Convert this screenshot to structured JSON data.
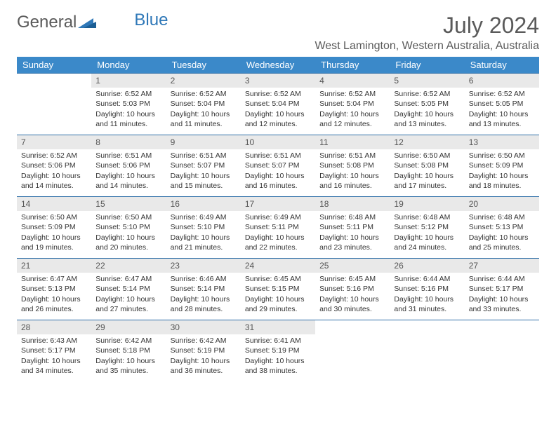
{
  "logo": {
    "text1": "General",
    "text2": "Blue"
  },
  "title": "July 2024",
  "location": "West Lamington, Western Australia, Australia",
  "colors": {
    "header_bg": "#3b89c9",
    "header_text": "#ffffff",
    "daynum_bg": "#e9e9e9",
    "row_border": "#2f6fa8",
    "title_color": "#5a5a5a"
  },
  "typography": {
    "title_fontsize": 32,
    "location_fontsize": 16,
    "dayheader_fontsize": 13,
    "cell_fontsize": 10.5
  },
  "day_headers": [
    "Sunday",
    "Monday",
    "Tuesday",
    "Wednesday",
    "Thursday",
    "Friday",
    "Saturday"
  ],
  "weeks": [
    [
      {
        "num": "",
        "sunrise": "",
        "sunset": "",
        "daylight": ""
      },
      {
        "num": "1",
        "sunrise": "Sunrise: 6:52 AM",
        "sunset": "Sunset: 5:03 PM",
        "daylight": "Daylight: 10 hours and 11 minutes."
      },
      {
        "num": "2",
        "sunrise": "Sunrise: 6:52 AM",
        "sunset": "Sunset: 5:04 PM",
        "daylight": "Daylight: 10 hours and 11 minutes."
      },
      {
        "num": "3",
        "sunrise": "Sunrise: 6:52 AM",
        "sunset": "Sunset: 5:04 PM",
        "daylight": "Daylight: 10 hours and 12 minutes."
      },
      {
        "num": "4",
        "sunrise": "Sunrise: 6:52 AM",
        "sunset": "Sunset: 5:04 PM",
        "daylight": "Daylight: 10 hours and 12 minutes."
      },
      {
        "num": "5",
        "sunrise": "Sunrise: 6:52 AM",
        "sunset": "Sunset: 5:05 PM",
        "daylight": "Daylight: 10 hours and 13 minutes."
      },
      {
        "num": "6",
        "sunrise": "Sunrise: 6:52 AM",
        "sunset": "Sunset: 5:05 PM",
        "daylight": "Daylight: 10 hours and 13 minutes."
      }
    ],
    [
      {
        "num": "7",
        "sunrise": "Sunrise: 6:52 AM",
        "sunset": "Sunset: 5:06 PM",
        "daylight": "Daylight: 10 hours and 14 minutes."
      },
      {
        "num": "8",
        "sunrise": "Sunrise: 6:51 AM",
        "sunset": "Sunset: 5:06 PM",
        "daylight": "Daylight: 10 hours and 14 minutes."
      },
      {
        "num": "9",
        "sunrise": "Sunrise: 6:51 AM",
        "sunset": "Sunset: 5:07 PM",
        "daylight": "Daylight: 10 hours and 15 minutes."
      },
      {
        "num": "10",
        "sunrise": "Sunrise: 6:51 AM",
        "sunset": "Sunset: 5:07 PM",
        "daylight": "Daylight: 10 hours and 16 minutes."
      },
      {
        "num": "11",
        "sunrise": "Sunrise: 6:51 AM",
        "sunset": "Sunset: 5:08 PM",
        "daylight": "Daylight: 10 hours and 16 minutes."
      },
      {
        "num": "12",
        "sunrise": "Sunrise: 6:50 AM",
        "sunset": "Sunset: 5:08 PM",
        "daylight": "Daylight: 10 hours and 17 minutes."
      },
      {
        "num": "13",
        "sunrise": "Sunrise: 6:50 AM",
        "sunset": "Sunset: 5:09 PM",
        "daylight": "Daylight: 10 hours and 18 minutes."
      }
    ],
    [
      {
        "num": "14",
        "sunrise": "Sunrise: 6:50 AM",
        "sunset": "Sunset: 5:09 PM",
        "daylight": "Daylight: 10 hours and 19 minutes."
      },
      {
        "num": "15",
        "sunrise": "Sunrise: 6:50 AM",
        "sunset": "Sunset: 5:10 PM",
        "daylight": "Daylight: 10 hours and 20 minutes."
      },
      {
        "num": "16",
        "sunrise": "Sunrise: 6:49 AM",
        "sunset": "Sunset: 5:10 PM",
        "daylight": "Daylight: 10 hours and 21 minutes."
      },
      {
        "num": "17",
        "sunrise": "Sunrise: 6:49 AM",
        "sunset": "Sunset: 5:11 PM",
        "daylight": "Daylight: 10 hours and 22 minutes."
      },
      {
        "num": "18",
        "sunrise": "Sunrise: 6:48 AM",
        "sunset": "Sunset: 5:11 PM",
        "daylight": "Daylight: 10 hours and 23 minutes."
      },
      {
        "num": "19",
        "sunrise": "Sunrise: 6:48 AM",
        "sunset": "Sunset: 5:12 PM",
        "daylight": "Daylight: 10 hours and 24 minutes."
      },
      {
        "num": "20",
        "sunrise": "Sunrise: 6:48 AM",
        "sunset": "Sunset: 5:13 PM",
        "daylight": "Daylight: 10 hours and 25 minutes."
      }
    ],
    [
      {
        "num": "21",
        "sunrise": "Sunrise: 6:47 AM",
        "sunset": "Sunset: 5:13 PM",
        "daylight": "Daylight: 10 hours and 26 minutes."
      },
      {
        "num": "22",
        "sunrise": "Sunrise: 6:47 AM",
        "sunset": "Sunset: 5:14 PM",
        "daylight": "Daylight: 10 hours and 27 minutes."
      },
      {
        "num": "23",
        "sunrise": "Sunrise: 6:46 AM",
        "sunset": "Sunset: 5:14 PM",
        "daylight": "Daylight: 10 hours and 28 minutes."
      },
      {
        "num": "24",
        "sunrise": "Sunrise: 6:45 AM",
        "sunset": "Sunset: 5:15 PM",
        "daylight": "Daylight: 10 hours and 29 minutes."
      },
      {
        "num": "25",
        "sunrise": "Sunrise: 6:45 AM",
        "sunset": "Sunset: 5:16 PM",
        "daylight": "Daylight: 10 hours and 30 minutes."
      },
      {
        "num": "26",
        "sunrise": "Sunrise: 6:44 AM",
        "sunset": "Sunset: 5:16 PM",
        "daylight": "Daylight: 10 hours and 31 minutes."
      },
      {
        "num": "27",
        "sunrise": "Sunrise: 6:44 AM",
        "sunset": "Sunset: 5:17 PM",
        "daylight": "Daylight: 10 hours and 33 minutes."
      }
    ],
    [
      {
        "num": "28",
        "sunrise": "Sunrise: 6:43 AM",
        "sunset": "Sunset: 5:17 PM",
        "daylight": "Daylight: 10 hours and 34 minutes."
      },
      {
        "num": "29",
        "sunrise": "Sunrise: 6:42 AM",
        "sunset": "Sunset: 5:18 PM",
        "daylight": "Daylight: 10 hours and 35 minutes."
      },
      {
        "num": "30",
        "sunrise": "Sunrise: 6:42 AM",
        "sunset": "Sunset: 5:19 PM",
        "daylight": "Daylight: 10 hours and 36 minutes."
      },
      {
        "num": "31",
        "sunrise": "Sunrise: 6:41 AM",
        "sunset": "Sunset: 5:19 PM",
        "daylight": "Daylight: 10 hours and 38 minutes."
      },
      {
        "num": "",
        "sunrise": "",
        "sunset": "",
        "daylight": ""
      },
      {
        "num": "",
        "sunrise": "",
        "sunset": "",
        "daylight": ""
      },
      {
        "num": "",
        "sunrise": "",
        "sunset": "",
        "daylight": ""
      }
    ]
  ]
}
